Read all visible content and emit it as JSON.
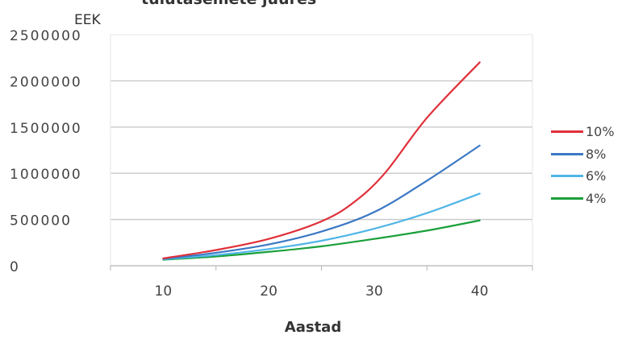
{
  "chart_data": {
    "type": "line",
    "title": "tulutasemete juures",
    "unit_label": "EEK",
    "xlabel": "Aastad",
    "ylabel": "",
    "xlim": [
      5,
      45
    ],
    "ylim": [
      0,
      2500000
    ],
    "x_ticks": [
      10,
      20,
      30,
      40
    ],
    "y_ticks": [
      0,
      500000,
      1000000,
      1500000,
      2000000,
      2500000
    ],
    "grid": "horizontal",
    "legend_position": "right",
    "series": [
      {
        "name": "10%",
        "color": "#e0303a",
        "x": [
          10,
          15,
          20,
          25,
          28,
          31,
          35,
          40
        ],
        "y": [
          80000,
          170000,
          290000,
          480000,
          680000,
          1000000,
          1600000,
          2200000
        ]
      },
      {
        "name": "8%",
        "color": "#3b78c4",
        "x": [
          10,
          15,
          20,
          25,
          30,
          35,
          40
        ],
        "y": [
          75000,
          140000,
          230000,
          370000,
          580000,
          920000,
          1300000
        ]
      },
      {
        "name": "6%",
        "color": "#4fb5e6",
        "x": [
          10,
          15,
          20,
          25,
          30,
          35,
          40
        ],
        "y": [
          70000,
          115000,
          180000,
          270000,
          400000,
          570000,
          780000
        ]
      },
      {
        "name": "4%",
        "color": "#1aa03a",
        "x": [
          10,
          15,
          20,
          25,
          30,
          35,
          40
        ],
        "y": [
          65000,
          100000,
          150000,
          210000,
          290000,
          380000,
          490000
        ]
      }
    ]
  }
}
